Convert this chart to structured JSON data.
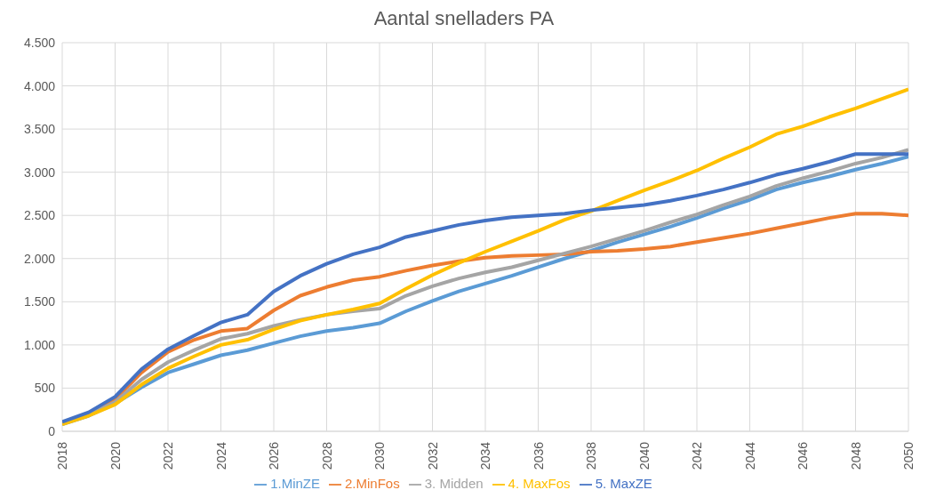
{
  "chart_data": {
    "type": "line",
    "title": "Aantal snelladers PA",
    "x": [
      2018,
      2019,
      2020,
      2021,
      2022,
      2023,
      2024,
      2025,
      2026,
      2027,
      2028,
      2029,
      2030,
      2031,
      2032,
      2033,
      2034,
      2035,
      2036,
      2037,
      2038,
      2039,
      2040,
      2041,
      2042,
      2043,
      2044,
      2045,
      2046,
      2047,
      2048,
      2049,
      2050
    ],
    "series": [
      {
        "name": "1.MinZE",
        "color": "#5b9bd5",
        "values": [
          80,
          180,
          320,
          510,
          680,
          780,
          880,
          940,
          1020,
          1100,
          1160,
          1200,
          1250,
          1390,
          1510,
          1620,
          1710,
          1800,
          1900,
          2000,
          2090,
          2190,
          2280,
          2370,
          2470,
          2580,
          2680,
          2800,
          2880,
          2950,
          3030,
          3100,
          3180
        ]
      },
      {
        "name": "2.MinFos",
        "color": "#ed7d31",
        "values": [
          90,
          200,
          370,
          680,
          920,
          1060,
          1160,
          1190,
          1400,
          1570,
          1670,
          1750,
          1790,
          1860,
          1920,
          1970,
          2010,
          2030,
          2040,
          2050,
          2080,
          2090,
          2110,
          2140,
          2190,
          2240,
          2290,
          2350,
          2410,
          2470,
          2520,
          2520,
          2500
        ]
      },
      {
        "name": "3. Midden",
        "color": "#a5a5a5",
        "values": [
          90,
          190,
          340,
          600,
          800,
          940,
          1070,
          1130,
          1220,
          1290,
          1350,
          1390,
          1420,
          1570,
          1680,
          1770,
          1840,
          1900,
          1980,
          2060,
          2140,
          2230,
          2320,
          2420,
          2510,
          2620,
          2720,
          2840,
          2930,
          3010,
          3100,
          3170,
          3260
        ]
      },
      {
        "name": "4. MaxFos",
        "color": "#ffc000",
        "values": [
          80,
          180,
          310,
          540,
          730,
          870,
          1000,
          1060,
          1180,
          1280,
          1350,
          1410,
          1480,
          1650,
          1810,
          1950,
          2080,
          2200,
          2320,
          2450,
          2550,
          2670,
          2790,
          2900,
          3020,
          3160,
          3290,
          3440,
          3530,
          3640,
          3740,
          3850,
          3960
        ]
      },
      {
        "name": "5. MaxZE",
        "color": "#4472c4",
        "values": [
          110,
          220,
          400,
          720,
          950,
          1110,
          1260,
          1350,
          1620,
          1800,
          1940,
          2050,
          2130,
          2250,
          2320,
          2390,
          2440,
          2480,
          2500,
          2520,
          2560,
          2590,
          2620,
          2670,
          2730,
          2800,
          2880,
          2970,
          3040,
          3120,
          3210,
          3210,
          3210
        ]
      }
    ],
    "xlim": [
      2018,
      2050
    ],
    "xticks": [
      2018,
      2020,
      2022,
      2024,
      2026,
      2028,
      2030,
      2032,
      2034,
      2036,
      2038,
      2040,
      2042,
      2044,
      2046,
      2048,
      2050
    ],
    "ylim": [
      0,
      4500
    ],
    "yticks": [
      0,
      500,
      {
        "value": 1000,
        "label": "1.000"
      },
      {
        "value": 1500,
        "label": "1.500"
      },
      {
        "value": 2000,
        "label": "2.000"
      },
      {
        "value": 2500,
        "label": "2.500"
      },
      {
        "value": 3000,
        "label": "3.000"
      },
      {
        "value": 3500,
        "label": "3.500"
      },
      {
        "value": 4000,
        "label": "4.000"
      },
      {
        "value": 4500,
        "label": "4.500"
      }
    ],
    "grid": true,
    "legend": "bottom",
    "marker": "none",
    "line_style": "solid"
  }
}
